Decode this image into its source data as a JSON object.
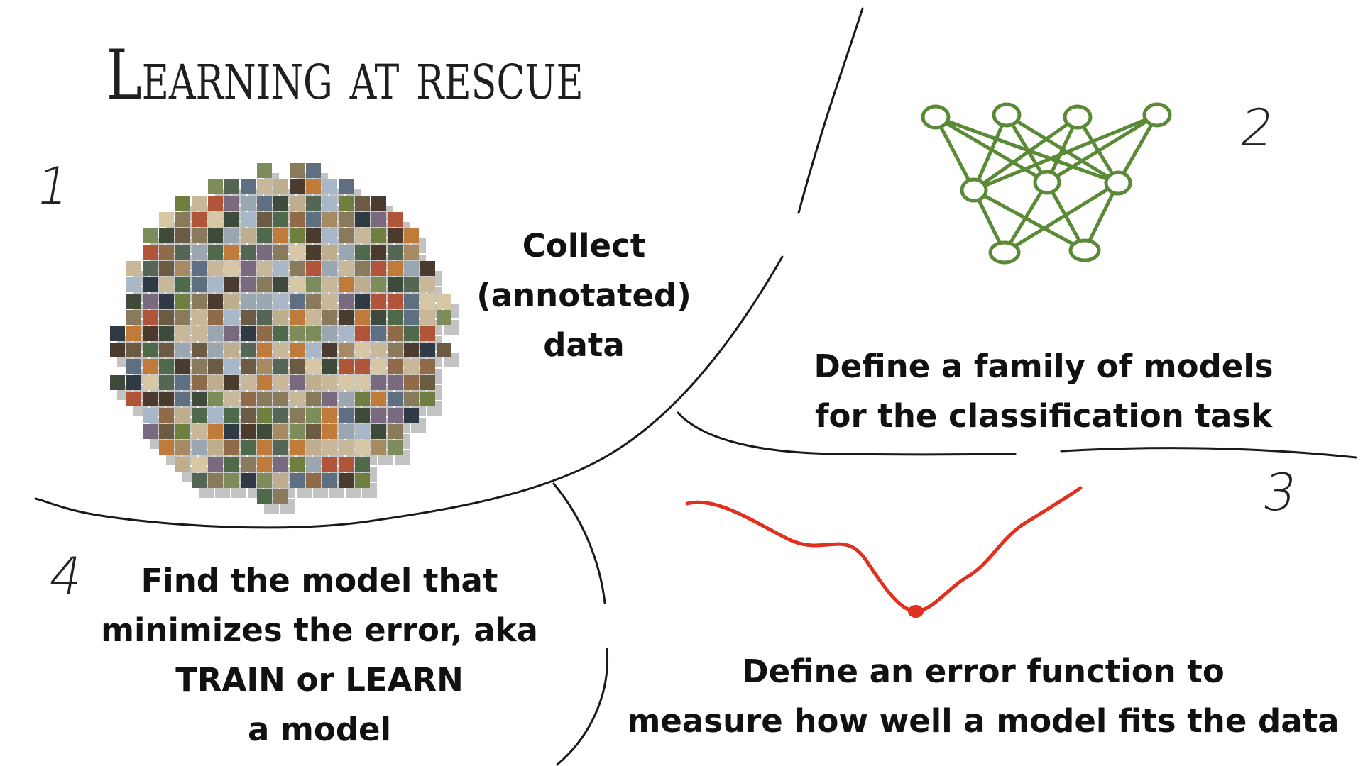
{
  "slide": {
    "title": "Learning at rescue",
    "steps": [
      {
        "number": "1",
        "lines": [
          "Collect",
          "(annotated)",
          "data"
        ]
      },
      {
        "number": "2",
        "lines": [
          "Define a family of models",
          "for the classification task"
        ]
      },
      {
        "number": "3",
        "lines": [
          "Define an error function to",
          "measure how well a model fits the data"
        ]
      },
      {
        "number": "4",
        "lines": [
          "Find the model that",
          "minimizes the error, aka",
          "TRAIN or LEARN",
          "a model"
        ]
      }
    ]
  },
  "colors": {
    "text": "#111111",
    "divider": "#1a1a1a",
    "network": "#5a8a35",
    "error_curve": "#e0301e"
  },
  "icons": [
    "image-mosaic",
    "neural-network-icon",
    "error-curve"
  ]
}
